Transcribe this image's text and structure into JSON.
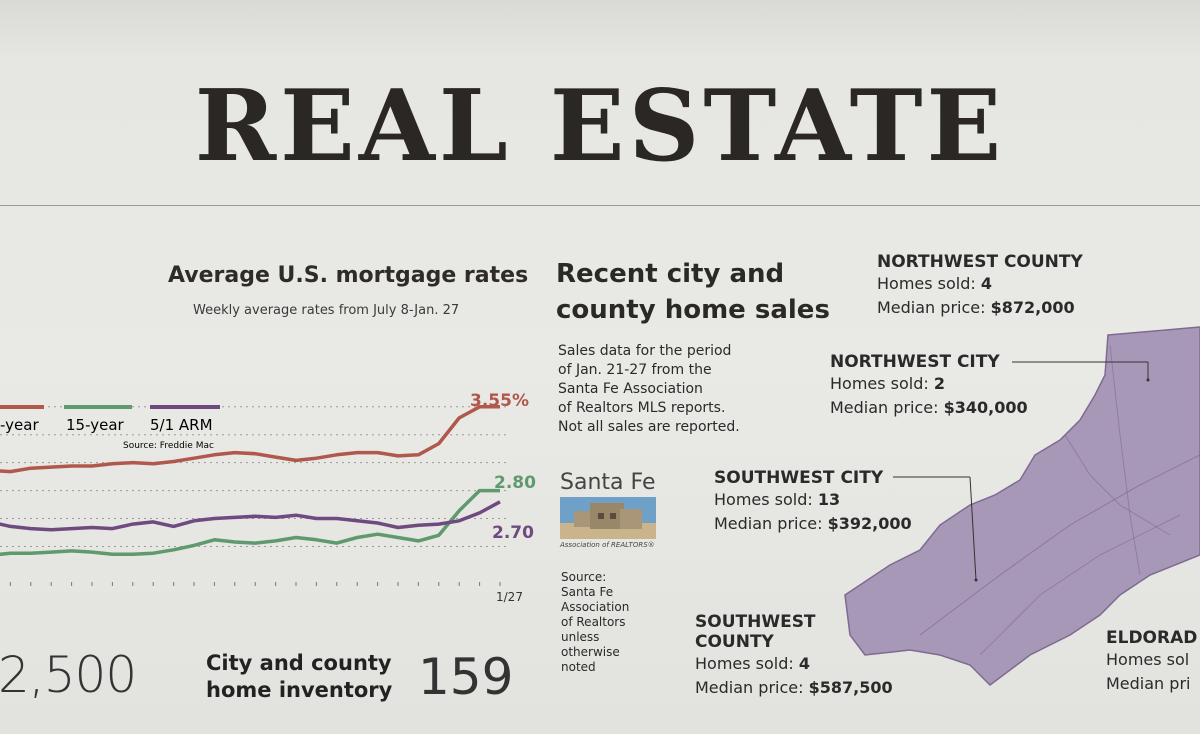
{
  "masthead": "REAL ESTATE",
  "mortgage_chart": {
    "title": "Average U.S. mortgage rates",
    "subtitle": "Weekly average rates from July 8-Jan. 27",
    "legend": [
      {
        "label": "-year",
        "color": "#b0584c"
      },
      {
        "label": "15-year",
        "color": "#5f9a6e"
      },
      {
        "label": "5/1 ARM",
        "color": "#6f4a80"
      }
    ],
    "source": "Source: Freddie Mac",
    "end_labels": {
      "top": "3.55%",
      "green": "2.80",
      "purple": "2.70"
    },
    "x_last_label": "1/27"
  },
  "chart_data": {
    "type": "line",
    "title": "Average U.S. mortgage rates",
    "subtitle": "Weekly average rates from July 8-Jan. 27",
    "x_last": "1/27",
    "series": [
      {
        "name": "-year",
        "color": "#b0584c",
        "values": [
          2.98,
          2.97,
          3.0,
          3.01,
          3.02,
          3.02,
          3.04,
          3.05,
          3.04,
          3.06,
          3.09,
          3.12,
          3.14,
          3.13,
          3.1,
          3.07,
          3.09,
          3.12,
          3.14,
          3.14,
          3.11,
          3.12,
          3.22,
          3.45,
          3.55,
          3.55
        ]
      },
      {
        "name": "15-year",
        "color": "#5f9a6e",
        "values": [
          2.22,
          2.24,
          2.24,
          2.25,
          2.26,
          2.25,
          2.23,
          2.23,
          2.24,
          2.27,
          2.31,
          2.36,
          2.34,
          2.33,
          2.35,
          2.38,
          2.36,
          2.33,
          2.38,
          2.41,
          2.38,
          2.35,
          2.4,
          2.62,
          2.8,
          2.8
        ]
      },
      {
        "name": "5/1 ARM",
        "color": "#6f4a80",
        "values": [
          2.52,
          2.48,
          2.46,
          2.45,
          2.46,
          2.47,
          2.46,
          2.5,
          2.52,
          2.48,
          2.53,
          2.55,
          2.56,
          2.57,
          2.56,
          2.58,
          2.55,
          2.55,
          2.53,
          2.51,
          2.47,
          2.49,
          2.5,
          2.53,
          2.6,
          2.7
        ]
      }
    ],
    "end_values": {
      "15-year": 2.8,
      "5/1 ARM": 2.7,
      "-year": 3.55
    },
    "grid": "dotted",
    "legend_position": "top-left"
  },
  "inventory": {
    "left_value": "2,500",
    "title_line1": "City and county",
    "title_line2": "home inventory",
    "value": "159"
  },
  "sales": {
    "title_line1": "Recent city and",
    "title_line2": "county home sales",
    "desc": [
      "Sales data for the period",
      "of Jan. 21-27 from the",
      "Santa Fe Association",
      "of Realtors MLS reports.",
      "Not all sales are reported."
    ],
    "logo_text": "Santa Fe",
    "logo_caption": "Association of REALTORS®",
    "source_lines": [
      "Source:",
      "Santa Fe",
      "Association",
      "of Realtors",
      "unless",
      "otherwise",
      "noted"
    ]
  },
  "regions": [
    {
      "name": "NORTHWEST COUNTY",
      "sold_label": "Homes sold: ",
      "sold": "4",
      "price_label": "Median price: ",
      "price": "$872,000"
    },
    {
      "name": "NORTHWEST CITY",
      "sold_label": "Homes sold: ",
      "sold": "2",
      "price_label": "Median price: ",
      "price": "$340,000"
    },
    {
      "name": "SOUTHWEST CITY",
      "sold_label": "Homes sold: ",
      "sold": "13",
      "price_label": "Median price: ",
      "price": "$392,000"
    },
    {
      "name": "SOUTHWEST",
      "name2": "COUNTY",
      "sold_label": "Homes sold: ",
      "sold": "4",
      "price_label": "Median price: ",
      "price": "$587,500"
    },
    {
      "name": "ELDORAD",
      "sold_label": "Homes sol",
      "sold": "",
      "price_label": "Median pri",
      "price": ""
    }
  ],
  "colors": {
    "map_fill": "#a898b8",
    "map_line": "#7e6a92"
  }
}
